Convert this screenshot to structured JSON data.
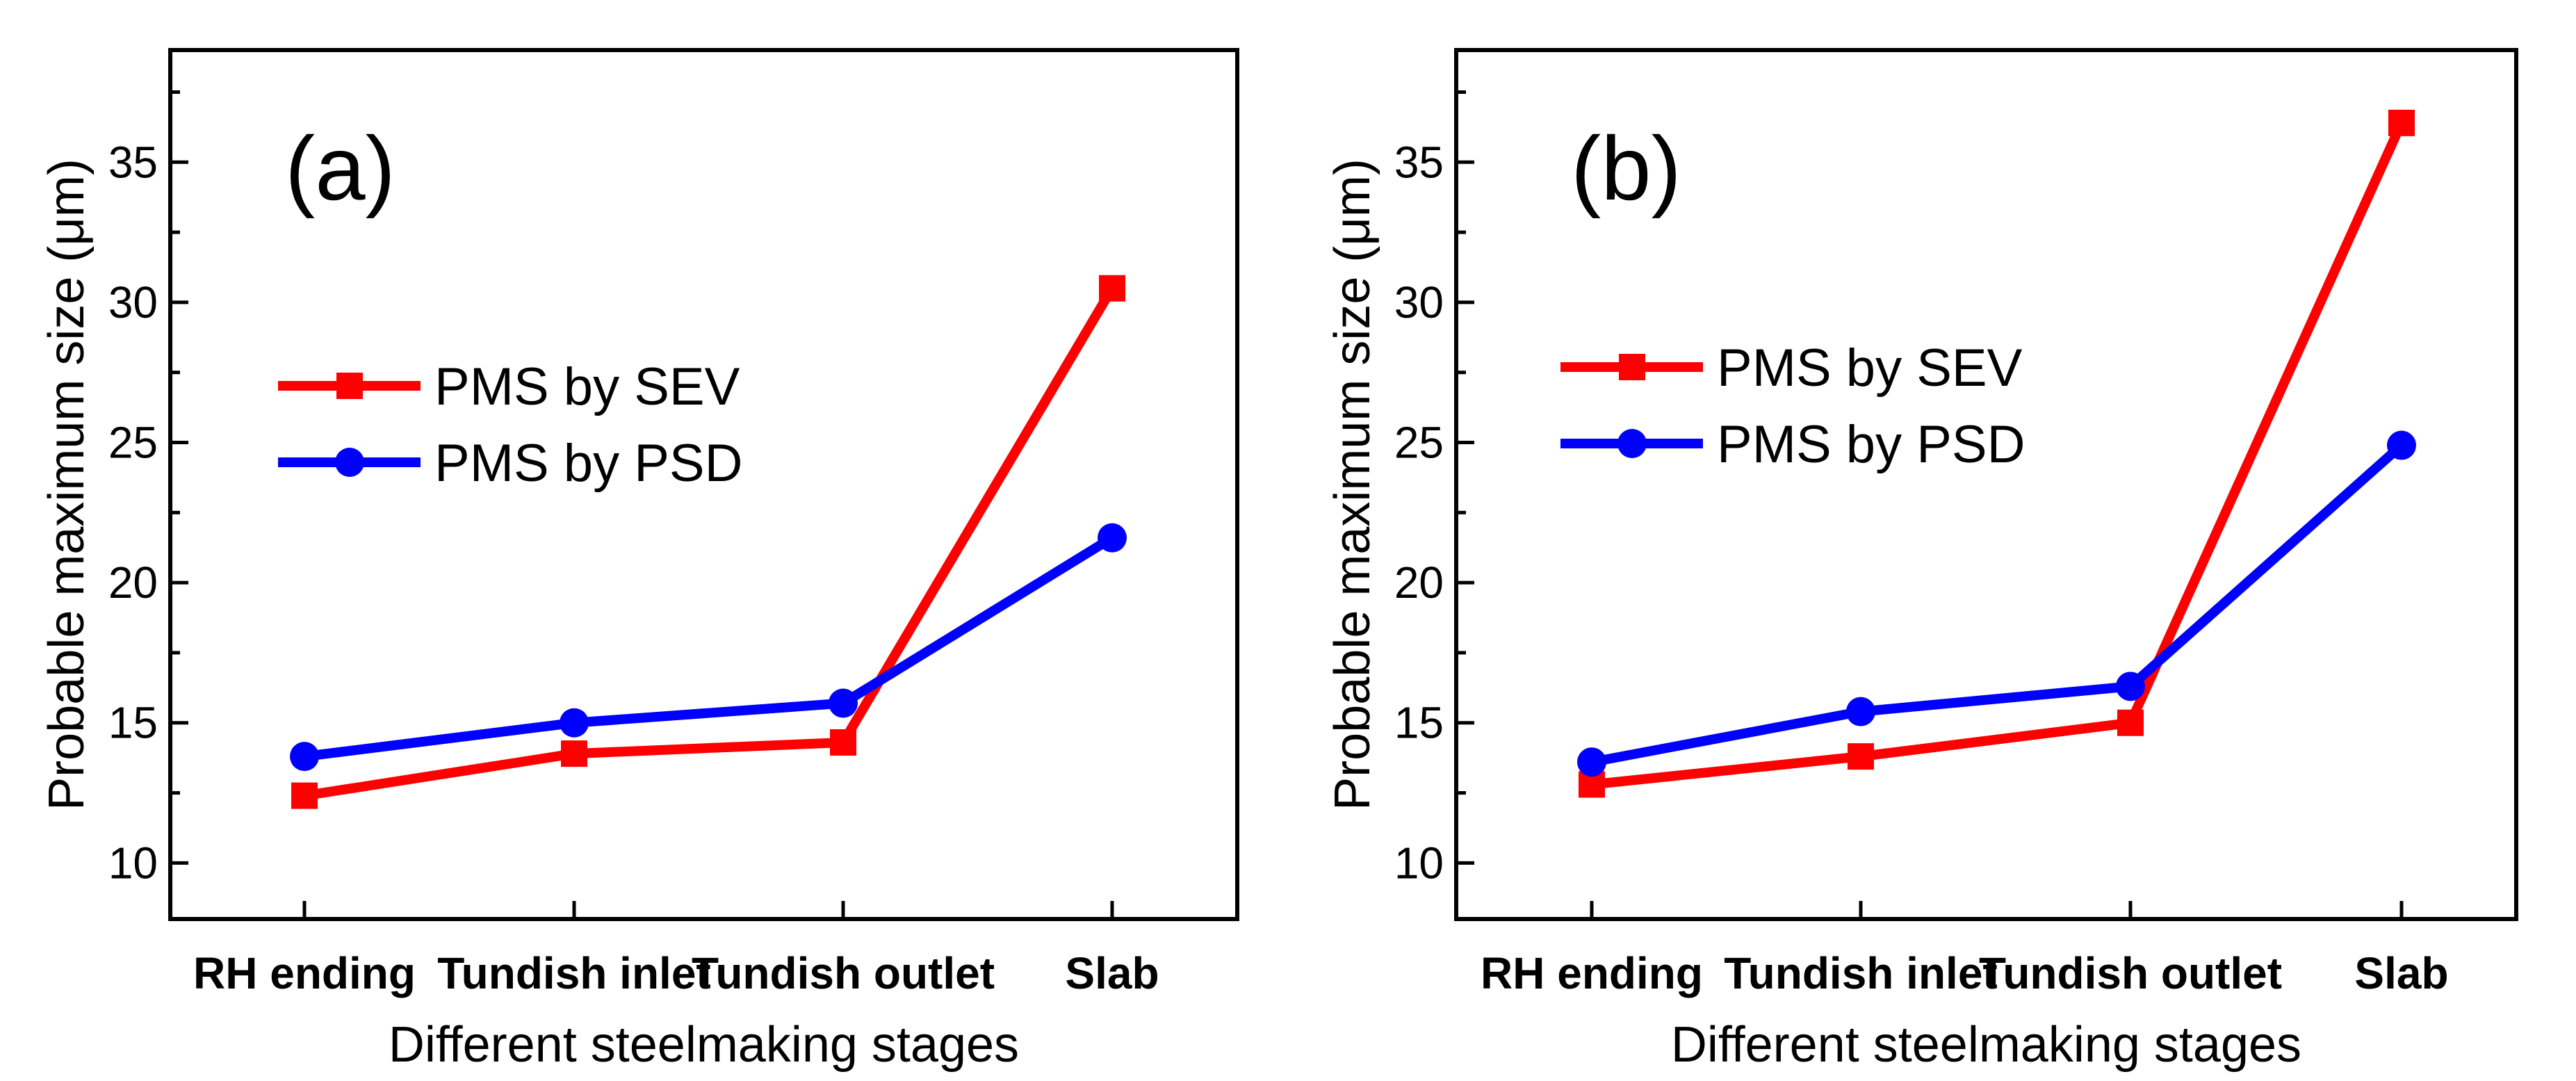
{
  "chart_data": [
    {
      "type": "line",
      "panel_label": "(a)",
      "categories": [
        "RH ending",
        "Tundish inlet",
        "Tundish outlet",
        "Slab"
      ],
      "series": [
        {
          "name": "PMS by SEV",
          "color": "#ff0000",
          "marker": "square",
          "values": [
            12.4,
            13.9,
            14.3,
            30.5
          ]
        },
        {
          "name": "PMS by PSD",
          "color": "#0000ff",
          "marker": "circle",
          "values": [
            13.8,
            15.0,
            15.7,
            21.6
          ]
        }
      ],
      "xlabel": "Different steelmaking stages",
      "ylabel": "Probable maximum size (μm)",
      "ylim": [
        8,
        39
      ],
      "yticks": [
        10,
        15,
        20,
        25,
        30,
        35
      ],
      "legend_position": "center-left"
    },
    {
      "type": "line",
      "panel_label": "(b)",
      "categories": [
        "RH ending",
        "Tundish inlet",
        "Tundish outlet",
        "Slab"
      ],
      "series": [
        {
          "name": "PMS by SEV",
          "color": "#ff0000",
          "marker": "square",
          "values": [
            12.8,
            13.8,
            15.0,
            36.4
          ]
        },
        {
          "name": "PMS by PSD",
          "color": "#0000ff",
          "marker": "circle",
          "values": [
            13.6,
            15.4,
            16.3,
            24.9
          ]
        }
      ],
      "xlabel": "Different steelmaking stages",
      "ylabel": "Probable maximum size (μm)",
      "ylim": [
        8,
        39
      ],
      "yticks": [
        10,
        15,
        20,
        25,
        30,
        35
      ],
      "legend_position": "center-left"
    }
  ]
}
